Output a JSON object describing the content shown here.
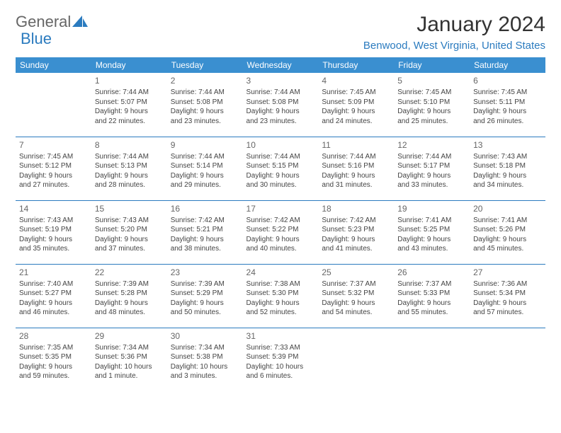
{
  "logo": {
    "text1": "General",
    "text2": "Blue"
  },
  "title": "January 2024",
  "location": "Benwood, West Virginia, United States",
  "colors": {
    "header_bg": "#3a8fd0",
    "header_text": "#ffffff",
    "accent": "#2b7bbf",
    "body_text": "#444444"
  },
  "weekdays": [
    "Sunday",
    "Monday",
    "Tuesday",
    "Wednesday",
    "Thursday",
    "Friday",
    "Saturday"
  ],
  "cells": [
    {
      "day": "",
      "sunrise": "",
      "sunset": "",
      "daylight1": "",
      "daylight2": ""
    },
    {
      "day": "1",
      "sunrise": "Sunrise: 7:44 AM",
      "sunset": "Sunset: 5:07 PM",
      "daylight1": "Daylight: 9 hours",
      "daylight2": "and 22 minutes."
    },
    {
      "day": "2",
      "sunrise": "Sunrise: 7:44 AM",
      "sunset": "Sunset: 5:08 PM",
      "daylight1": "Daylight: 9 hours",
      "daylight2": "and 23 minutes."
    },
    {
      "day": "3",
      "sunrise": "Sunrise: 7:44 AM",
      "sunset": "Sunset: 5:08 PM",
      "daylight1": "Daylight: 9 hours",
      "daylight2": "and 23 minutes."
    },
    {
      "day": "4",
      "sunrise": "Sunrise: 7:45 AM",
      "sunset": "Sunset: 5:09 PM",
      "daylight1": "Daylight: 9 hours",
      "daylight2": "and 24 minutes."
    },
    {
      "day": "5",
      "sunrise": "Sunrise: 7:45 AM",
      "sunset": "Sunset: 5:10 PM",
      "daylight1": "Daylight: 9 hours",
      "daylight2": "and 25 minutes."
    },
    {
      "day": "6",
      "sunrise": "Sunrise: 7:45 AM",
      "sunset": "Sunset: 5:11 PM",
      "daylight1": "Daylight: 9 hours",
      "daylight2": "and 26 minutes."
    },
    {
      "day": "7",
      "sunrise": "Sunrise: 7:45 AM",
      "sunset": "Sunset: 5:12 PM",
      "daylight1": "Daylight: 9 hours",
      "daylight2": "and 27 minutes."
    },
    {
      "day": "8",
      "sunrise": "Sunrise: 7:44 AM",
      "sunset": "Sunset: 5:13 PM",
      "daylight1": "Daylight: 9 hours",
      "daylight2": "and 28 minutes."
    },
    {
      "day": "9",
      "sunrise": "Sunrise: 7:44 AM",
      "sunset": "Sunset: 5:14 PM",
      "daylight1": "Daylight: 9 hours",
      "daylight2": "and 29 minutes."
    },
    {
      "day": "10",
      "sunrise": "Sunrise: 7:44 AM",
      "sunset": "Sunset: 5:15 PM",
      "daylight1": "Daylight: 9 hours",
      "daylight2": "and 30 minutes."
    },
    {
      "day": "11",
      "sunrise": "Sunrise: 7:44 AM",
      "sunset": "Sunset: 5:16 PM",
      "daylight1": "Daylight: 9 hours",
      "daylight2": "and 31 minutes."
    },
    {
      "day": "12",
      "sunrise": "Sunrise: 7:44 AM",
      "sunset": "Sunset: 5:17 PM",
      "daylight1": "Daylight: 9 hours",
      "daylight2": "and 33 minutes."
    },
    {
      "day": "13",
      "sunrise": "Sunrise: 7:43 AM",
      "sunset": "Sunset: 5:18 PM",
      "daylight1": "Daylight: 9 hours",
      "daylight2": "and 34 minutes."
    },
    {
      "day": "14",
      "sunrise": "Sunrise: 7:43 AM",
      "sunset": "Sunset: 5:19 PM",
      "daylight1": "Daylight: 9 hours",
      "daylight2": "and 35 minutes."
    },
    {
      "day": "15",
      "sunrise": "Sunrise: 7:43 AM",
      "sunset": "Sunset: 5:20 PM",
      "daylight1": "Daylight: 9 hours",
      "daylight2": "and 37 minutes."
    },
    {
      "day": "16",
      "sunrise": "Sunrise: 7:42 AM",
      "sunset": "Sunset: 5:21 PM",
      "daylight1": "Daylight: 9 hours",
      "daylight2": "and 38 minutes."
    },
    {
      "day": "17",
      "sunrise": "Sunrise: 7:42 AM",
      "sunset": "Sunset: 5:22 PM",
      "daylight1": "Daylight: 9 hours",
      "daylight2": "and 40 minutes."
    },
    {
      "day": "18",
      "sunrise": "Sunrise: 7:42 AM",
      "sunset": "Sunset: 5:23 PM",
      "daylight1": "Daylight: 9 hours",
      "daylight2": "and 41 minutes."
    },
    {
      "day": "19",
      "sunrise": "Sunrise: 7:41 AM",
      "sunset": "Sunset: 5:25 PM",
      "daylight1": "Daylight: 9 hours",
      "daylight2": "and 43 minutes."
    },
    {
      "day": "20",
      "sunrise": "Sunrise: 7:41 AM",
      "sunset": "Sunset: 5:26 PM",
      "daylight1": "Daylight: 9 hours",
      "daylight2": "and 45 minutes."
    },
    {
      "day": "21",
      "sunrise": "Sunrise: 7:40 AM",
      "sunset": "Sunset: 5:27 PM",
      "daylight1": "Daylight: 9 hours",
      "daylight2": "and 46 minutes."
    },
    {
      "day": "22",
      "sunrise": "Sunrise: 7:39 AM",
      "sunset": "Sunset: 5:28 PM",
      "daylight1": "Daylight: 9 hours",
      "daylight2": "and 48 minutes."
    },
    {
      "day": "23",
      "sunrise": "Sunrise: 7:39 AM",
      "sunset": "Sunset: 5:29 PM",
      "daylight1": "Daylight: 9 hours",
      "daylight2": "and 50 minutes."
    },
    {
      "day": "24",
      "sunrise": "Sunrise: 7:38 AM",
      "sunset": "Sunset: 5:30 PM",
      "daylight1": "Daylight: 9 hours",
      "daylight2": "and 52 minutes."
    },
    {
      "day": "25",
      "sunrise": "Sunrise: 7:37 AM",
      "sunset": "Sunset: 5:32 PM",
      "daylight1": "Daylight: 9 hours",
      "daylight2": "and 54 minutes."
    },
    {
      "day": "26",
      "sunrise": "Sunrise: 7:37 AM",
      "sunset": "Sunset: 5:33 PM",
      "daylight1": "Daylight: 9 hours",
      "daylight2": "and 55 minutes."
    },
    {
      "day": "27",
      "sunrise": "Sunrise: 7:36 AM",
      "sunset": "Sunset: 5:34 PM",
      "daylight1": "Daylight: 9 hours",
      "daylight2": "and 57 minutes."
    },
    {
      "day": "28",
      "sunrise": "Sunrise: 7:35 AM",
      "sunset": "Sunset: 5:35 PM",
      "daylight1": "Daylight: 9 hours",
      "daylight2": "and 59 minutes."
    },
    {
      "day": "29",
      "sunrise": "Sunrise: 7:34 AM",
      "sunset": "Sunset: 5:36 PM",
      "daylight1": "Daylight: 10 hours",
      "daylight2": "and 1 minute."
    },
    {
      "day": "30",
      "sunrise": "Sunrise: 7:34 AM",
      "sunset": "Sunset: 5:38 PM",
      "daylight1": "Daylight: 10 hours",
      "daylight2": "and 3 minutes."
    },
    {
      "day": "31",
      "sunrise": "Sunrise: 7:33 AM",
      "sunset": "Sunset: 5:39 PM",
      "daylight1": "Daylight: 10 hours",
      "daylight2": "and 6 minutes."
    },
    {
      "day": "",
      "sunrise": "",
      "sunset": "",
      "daylight1": "",
      "daylight2": ""
    },
    {
      "day": "",
      "sunrise": "",
      "sunset": "",
      "daylight1": "",
      "daylight2": ""
    },
    {
      "day": "",
      "sunrise": "",
      "sunset": "",
      "daylight1": "",
      "daylight2": ""
    }
  ]
}
